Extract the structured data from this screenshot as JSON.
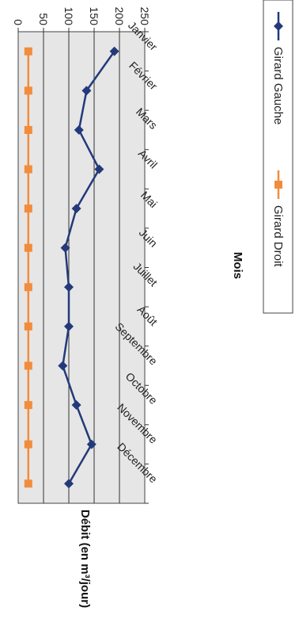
{
  "chart_data": {
    "type": "line",
    "categories": [
      "Janvier",
      "Février",
      "Mars",
      "Avril",
      "Mai",
      "Juin",
      "Juillet",
      "Août",
      "Septembre",
      "Octobre",
      "Novembre",
      "Décembre"
    ],
    "series": [
      {
        "name": "Girard Gauche",
        "color": "#233a7a",
        "marker": "diamond",
        "values": [
          190,
          135,
          120,
          160,
          115,
          93,
          100,
          100,
          88,
          115,
          145,
          100
        ]
      },
      {
        "name": "Girard Droit",
        "color": "#f28c3c",
        "marker": "square",
        "values": [
          20,
          20,
          20,
          20,
          20,
          20,
          20,
          20,
          20,
          20,
          20,
          20
        ]
      }
    ],
    "xlabel": "Mois",
    "ylabel": "Débit (en m³/jour)",
    "ylim": [
      0,
      250
    ],
    "yticks": [
      0,
      50,
      100,
      150,
      200,
      250
    ],
    "grid": true,
    "orientation": "rotated-90-clockwise",
    "legend_position": "bottom"
  }
}
